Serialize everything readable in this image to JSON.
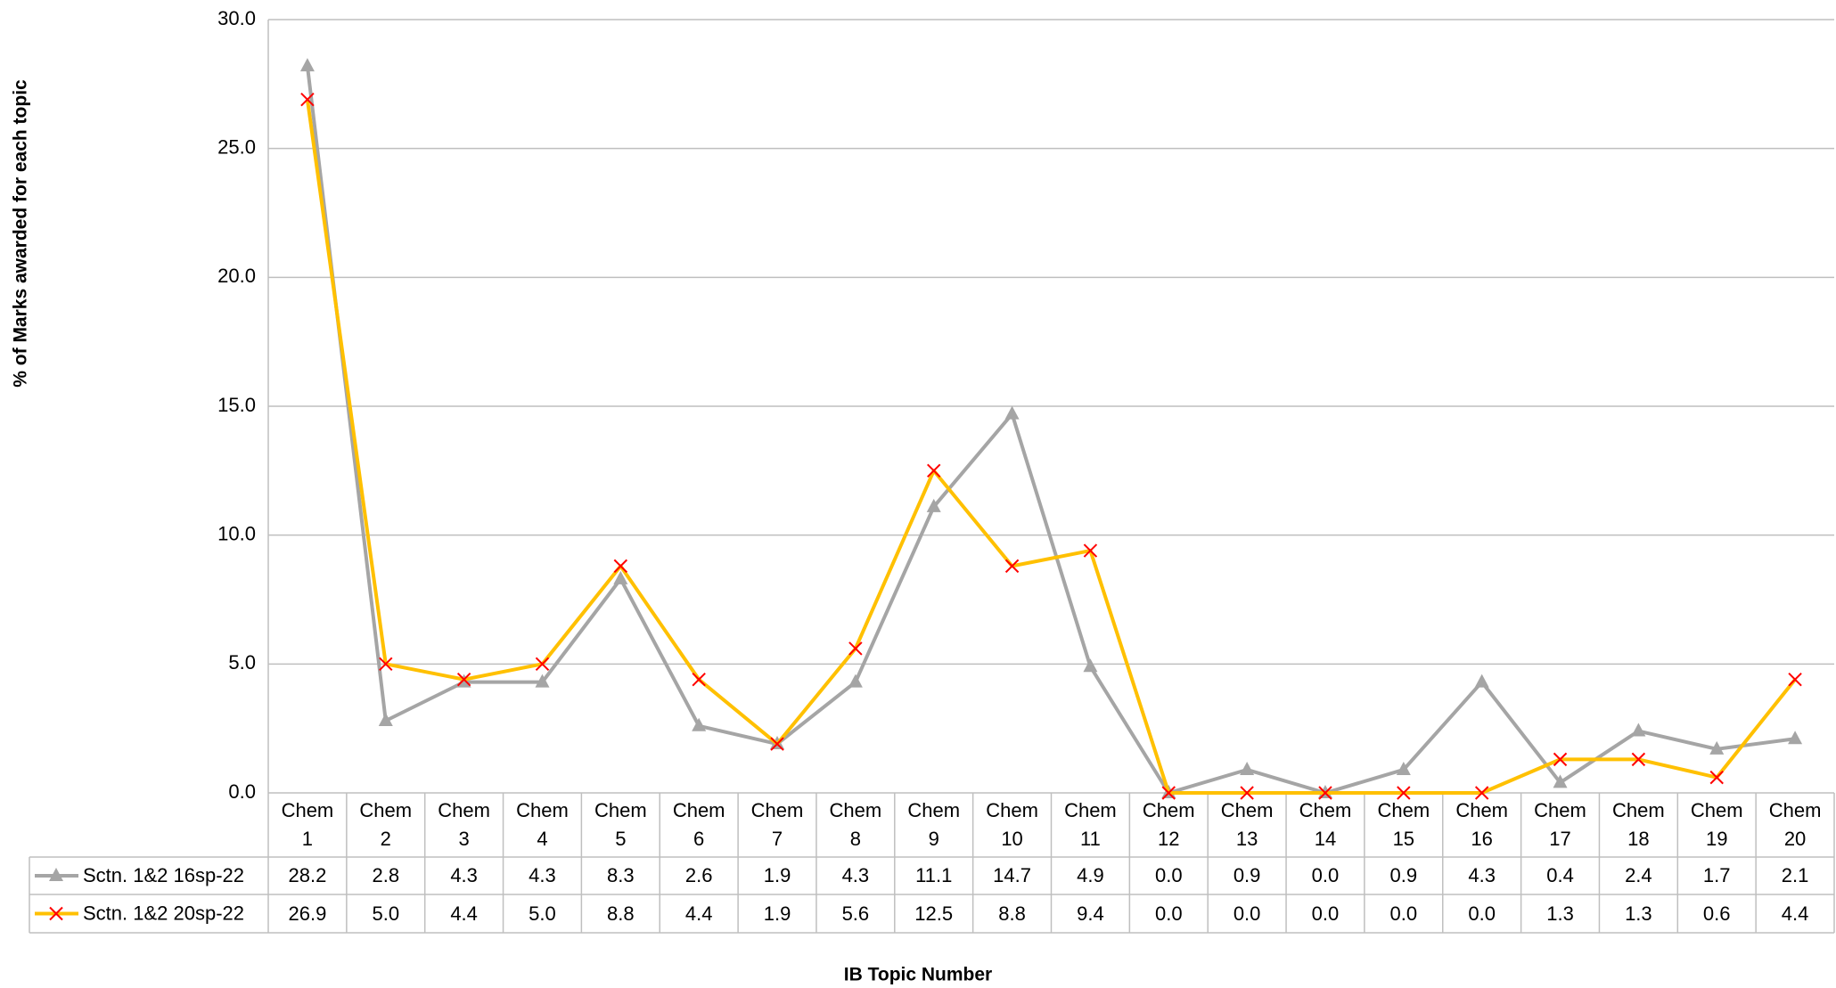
{
  "chart_data": {
    "type": "line",
    "x_label": "IB Topic Number",
    "y_label": "% of Marks awarded for each topic",
    "categories": [
      "Chem 1",
      "Chem 2",
      "Chem 3",
      "Chem 4",
      "Chem 5",
      "Chem 6",
      "Chem 7",
      "Chem 8",
      "Chem 9",
      "Chem 10",
      "Chem 11",
      "Chem 12",
      "Chem 13",
      "Chem 14",
      "Chem 15",
      "Chem 16",
      "Chem 17",
      "Chem 18",
      "Chem 19",
      "Chem 20"
    ],
    "series": [
      {
        "name": "Sctn. 1&2 16sp-22",
        "color": "#a5a5a5",
        "marker": "triangle",
        "marker_color": "#a5a5a5",
        "values": [
          28.2,
          2.8,
          4.3,
          4.3,
          8.3,
          2.6,
          1.9,
          4.3,
          11.1,
          14.7,
          4.9,
          0,
          0.9,
          0,
          0.9,
          4.3,
          0.4,
          2.4,
          1.7,
          2.1
        ],
        "value_labels": [
          "28.2",
          "2.8",
          "4.3",
          "4.3",
          "8.3",
          "2.6",
          "1.9",
          "4.3",
          "11.1",
          "14.7",
          "4.9",
          "0.0",
          "0.9",
          "0.0",
          "0.9",
          "4.3",
          "0.4",
          "2.4",
          "1.7",
          "2.1"
        ]
      },
      {
        "name": "Sctn. 1&2 20sp-22",
        "color": "#ffc000",
        "marker": "x",
        "marker_color": "#ff0000",
        "values": [
          26.9,
          5,
          4.4,
          5,
          8.8,
          4.4,
          1.9,
          5.6,
          12.5,
          8.8,
          9.4,
          0,
          0,
          0,
          0,
          0,
          1.3,
          1.3,
          0.6,
          4.4
        ],
        "value_labels": [
          "26.9",
          "5.0",
          "4.4",
          "5.0",
          "8.8",
          "4.4",
          "1.9",
          "5.6",
          "12.5",
          "8.8",
          "9.4",
          "0.0",
          "0.0",
          "0.0",
          "0.0",
          "0.0",
          "1.3",
          "1.3",
          "0.6",
          "4.4"
        ]
      }
    ],
    "ylim": [
      0,
      30
    ],
    "yticks": [
      {
        "value": 0,
        "label": "0.0"
      },
      {
        "value": 5,
        "label": "5.0"
      },
      {
        "value": 10,
        "label": "10.0"
      },
      {
        "value": 15,
        "label": "15.0"
      },
      {
        "value": 20,
        "label": "20.0"
      },
      {
        "value": 25,
        "label": "25.0"
      },
      {
        "value": 30,
        "label": "30.0"
      }
    ],
    "grid": true,
    "data_table": true
  }
}
